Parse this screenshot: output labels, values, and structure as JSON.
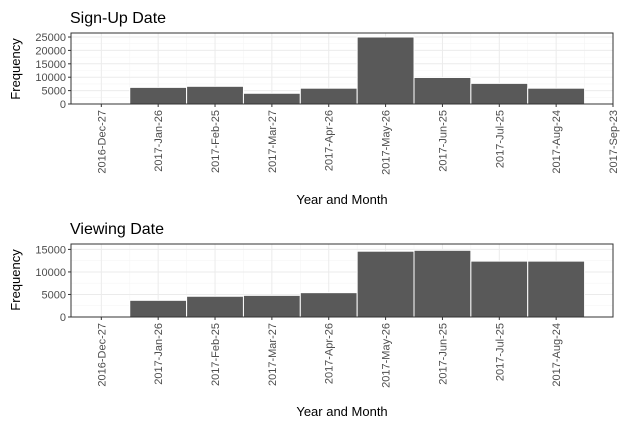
{
  "chart_data": [
    {
      "type": "bar",
      "title": "Sign-Up Date",
      "xlabel": "Year and Month",
      "ylabel": "Frequency",
      "x_ticks": [
        "2016-Dec-27",
        "2017-Jan-26",
        "2017-Feb-25",
        "2017-Mar-27",
        "2017-Apr-26",
        "2017-May-26",
        "2017-Jun-25",
        "2017-Jul-25",
        "2017-Aug-24",
        "2017-Sep-23"
      ],
      "y_ticks": [
        "0",
        "5000",
        "10000",
        "15000",
        "20000",
        "25000"
      ],
      "y_tick_values": [
        0,
        5000,
        10000,
        15000,
        20000,
        25000
      ],
      "ylim": [
        0,
        26500
      ],
      "x_range": [
        "2016-Dec-11",
        "2017-Sep-23"
      ],
      "bin_width_days": 30,
      "bars": [
        {
          "start": "2016-Dec-27",
          "value": 0
        },
        {
          "start": "2017-Jan-11",
          "value": 6200
        },
        {
          "start": "2017-Feb-10",
          "value": 6600
        },
        {
          "start": "2017-Mar-12",
          "value": 4000
        },
        {
          "start": "2017-Apr-11",
          "value": 5900
        },
        {
          "start": "2017-May-11",
          "value": 25000
        },
        {
          "start": "2017-Jun-10",
          "value": 9900
        },
        {
          "start": "2017-Jul-10",
          "value": 7700
        },
        {
          "start": "2017-Aug-09",
          "value": 5900
        }
      ],
      "grid": true,
      "bar_color": "#595959"
    },
    {
      "type": "bar",
      "title": "Viewing Date",
      "xlabel": "Year and Month",
      "ylabel": "Frequency",
      "x_ticks": [
        "2016-Dec-27",
        "2017-Jan-26",
        "2017-Feb-25",
        "2017-Mar-27",
        "2017-Apr-26",
        "2017-May-26",
        "2017-Jun-25",
        "2017-Jul-25",
        "2017-Aug-24"
      ],
      "y_ticks": [
        "0",
        "5000",
        "10000",
        "15000"
      ],
      "y_tick_values": [
        0,
        5000,
        10000,
        15000
      ],
      "ylim": [
        0,
        16200
      ],
      "x_range": [
        "2016-Dec-11",
        "2017-Sep-23"
      ],
      "bin_width_days": 30,
      "bars": [
        {
          "start": "2017-Jan-11",
          "value": 3700
        },
        {
          "start": "2017-Feb-10",
          "value": 4600
        },
        {
          "start": "2017-Mar-12",
          "value": 4800
        },
        {
          "start": "2017-Apr-11",
          "value": 5400
        },
        {
          "start": "2017-May-11",
          "value": 14600
        },
        {
          "start": "2017-Jun-10",
          "value": 14800
        },
        {
          "start": "2017-Jul-10",
          "value": 12400
        },
        {
          "start": "2017-Aug-09",
          "value": 12400
        }
      ],
      "grid": true,
      "bar_color": "#595959"
    }
  ]
}
